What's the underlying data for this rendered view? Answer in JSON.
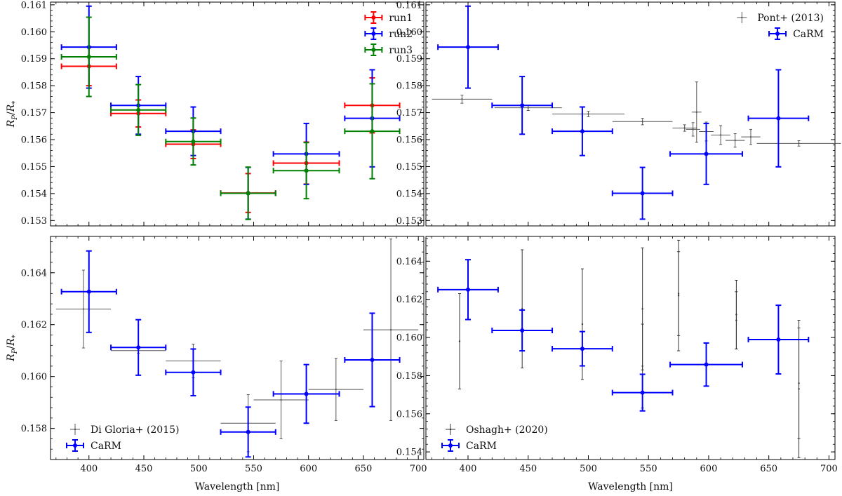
{
  "figure": {
    "xlabel": "Wavelength [nm]",
    "ylabel": "R_P/R_*",
    "ylabel_main": "R",
    "ylabel_sub1": "P",
    "ylabel_slash": "/",
    "ylabel_sub2": "*"
  },
  "chart_data": [
    {
      "type": "scatter",
      "panel": "top-left",
      "title": "",
      "xlabel": "",
      "ylabel": "R_P/R_*",
      "xlim": [
        365,
        705
      ],
      "ylim": [
        152.8,
        161.1
      ],
      "y_scale": 0.001,
      "xticks": [
        400,
        450,
        500,
        550,
        600,
        650,
        700
      ],
      "yticks": [
        153,
        154,
        155,
        156,
        157,
        158,
        159,
        160,
        161
      ],
      "ytick_labels": [
        "0.153",
        "0.154",
        "0.155",
        "0.156",
        "0.157",
        "0.158",
        "0.159",
        "0.160",
        "0.161"
      ],
      "show_xtick_labels": false,
      "legend_position": "top-right",
      "series": [
        {
          "name": "run1",
          "color": "#ff0000",
          "style": "main",
          "points": [
            {
              "x": 400,
              "xerr": 25,
              "y": 158.72,
              "yerr": 0.72
            },
            {
              "x": 445,
              "xerr": 25,
              "y": 156.97,
              "yerr": 0.5
            },
            {
              "x": 495,
              "xerr": 25,
              "y": 155.83,
              "yerr": 0.53
            },
            {
              "x": 545,
              "xerr": 25,
              "y": 154.02,
              "yerr": 0.72
            },
            {
              "x": 598,
              "xerr": 30,
              "y": 155.13,
              "yerr": 0.78
            },
            {
              "x": 658,
              "xerr": 25,
              "y": 157.27,
              "yerr": 1.02
            }
          ]
        },
        {
          "name": "run2",
          "color": "#0000ff",
          "style": "main",
          "points": [
            {
              "x": 400,
              "xerr": 25,
              "y": 159.43,
              "yerr": 1.52
            },
            {
              "x": 445,
              "xerr": 25,
              "y": 157.27,
              "yerr": 1.07
            },
            {
              "x": 495,
              "xerr": 25,
              "y": 156.31,
              "yerr": 0.9
            },
            {
              "x": 545,
              "xerr": 25,
              "y": 154.01,
              "yerr": 0.96
            },
            {
              "x": 598,
              "xerr": 30,
              "y": 155.47,
              "yerr": 1.13
            },
            {
              "x": 658,
              "xerr": 25,
              "y": 156.79,
              "yerr": 1.8
            }
          ]
        },
        {
          "name": "run3",
          "color": "#008000",
          "style": "main",
          "points": [
            {
              "x": 400,
              "xerr": 25,
              "y": 159.07,
              "yerr": 1.47
            },
            {
              "x": 445,
              "xerr": 25,
              "y": 157.1,
              "yerr": 0.94
            },
            {
              "x": 495,
              "xerr": 25,
              "y": 155.93,
              "yerr": 0.87
            },
            {
              "x": 545,
              "xerr": 25,
              "y": 154.01,
              "yerr": 0.97
            },
            {
              "x": 598,
              "xerr": 30,
              "y": 154.85,
              "yerr": 1.04
            },
            {
              "x": 658,
              "xerr": 25,
              "y": 156.31,
              "yerr": 1.76
            }
          ]
        }
      ]
    },
    {
      "type": "scatter",
      "panel": "top-right",
      "title": "",
      "xlabel": "",
      "ylabel": "",
      "xlim": [
        365,
        705
      ],
      "ylim": [
        152.8,
        161.1
      ],
      "y_scale": 0.001,
      "xticks": [
        400,
        450,
        500,
        550,
        600,
        650,
        700
      ],
      "yticks": [
        153,
        154,
        155,
        156,
        157,
        158,
        159,
        160,
        161
      ],
      "ytick_labels": [
        "0.153",
        "0.154",
        "0.155",
        "0.156",
        "0.157",
        "0.158",
        "0.159",
        "0.160",
        "0.161"
      ],
      "show_xtick_labels": false,
      "legend_position": "top-right",
      "series": [
        {
          "name": "Pont+ (2013)",
          "color": "#555555",
          "style": "ref",
          "points": [
            {
              "x": 395,
              "xerr": 25,
              "y": 157.5,
              "yerr": 0.15
            },
            {
              "x": 450,
              "xerr": 28,
              "y": 157.18,
              "yerr": 0.1
            },
            {
              "x": 500,
              "xerr": 30,
              "y": 156.95,
              "yerr": 0.1
            },
            {
              "x": 545,
              "xerr": 25,
              "y": 156.67,
              "yerr": 0.12
            },
            {
              "x": 580,
              "xerr": 10,
              "y": 156.43,
              "yerr": 0.12
            },
            {
              "x": 587,
              "xerr": 6,
              "y": 156.38,
              "yerr": 0.25
            },
            {
              "x": 590,
              "xerr": 4,
              "y": 157.02,
              "yerr": 1.12
            },
            {
              "x": 598,
              "xerr": 6,
              "y": 156.3,
              "yerr": 0.35
            },
            {
              "x": 610,
              "xerr": 8,
              "y": 156.17,
              "yerr": 0.35
            },
            {
              "x": 622,
              "xerr": 8,
              "y": 155.97,
              "yerr": 0.25
            },
            {
              "x": 635,
              "xerr": 8,
              "y": 156.1,
              "yerr": 0.28
            },
            {
              "x": 675,
              "xerr": 35,
              "y": 155.86,
              "yerr": 0.1
            }
          ]
        },
        {
          "name": "CaRM",
          "color": "#0000ff",
          "style": "main",
          "points": [
            {
              "x": 400,
              "xerr": 25,
              "y": 159.43,
              "yerr": 1.52
            },
            {
              "x": 445,
              "xerr": 25,
              "y": 157.27,
              "yerr": 1.07
            },
            {
              "x": 495,
              "xerr": 25,
              "y": 156.31,
              "yerr": 0.9
            },
            {
              "x": 545,
              "xerr": 25,
              "y": 154.01,
              "yerr": 0.96
            },
            {
              "x": 598,
              "xerr": 30,
              "y": 155.47,
              "yerr": 1.13
            },
            {
              "x": 658,
              "xerr": 25,
              "y": 156.79,
              "yerr": 1.8
            }
          ]
        }
      ]
    },
    {
      "type": "scatter",
      "panel": "bottom-left",
      "title": "",
      "xlabel": "Wavelength [nm]",
      "ylabel": "R_P/R_*",
      "xlim": [
        365,
        705
      ],
      "ylim": [
        156.8,
        165.4
      ],
      "y_scale": 0.001,
      "xticks": [
        400,
        450,
        500,
        550,
        600,
        650,
        700
      ],
      "yticks": [
        158,
        160,
        162,
        164
      ],
      "ytick_labels": [
        "0.158",
        "0.160",
        "0.162",
        "0.164"
      ],
      "show_xtick_labels": true,
      "legend_position": "bottom-left",
      "series": [
        {
          "name": "Di Gloria+ (2015)",
          "color": "#555555",
          "style": "ref",
          "points": [
            {
              "x": 395,
              "xerr": 25,
              "y": 162.6,
              "yerr": 1.5
            },
            {
              "x": 445,
              "xerr": 25,
              "y": 161.0,
              "yerr": 0.1
            },
            {
              "x": 495,
              "xerr": 25,
              "y": 160.6,
              "yerr": 0.65
            },
            {
              "x": 545,
              "xerr": 25,
              "y": 158.2,
              "yerr": 1.1
            },
            {
              "x": 575,
              "xerr": 25,
              "y": 159.1,
              "yerr": 1.5
            },
            {
              "x": 625,
              "xerr": 25,
              "y": 159.5,
              "yerr": 1.2
            },
            {
              "x": 675,
              "xerr": 25,
              "y": 161.8,
              "yerr": 3.5
            }
          ]
        },
        {
          "name": "CaRM",
          "color": "#0000ff",
          "style": "main",
          "points": [
            {
              "x": 400,
              "xerr": 25,
              "y": 163.27,
              "yerr": 1.57
            },
            {
              "x": 445,
              "xerr": 25,
              "y": 161.12,
              "yerr": 1.07
            },
            {
              "x": 495,
              "xerr": 25,
              "y": 160.16,
              "yerr": 0.9
            },
            {
              "x": 545,
              "xerr": 25,
              "y": 157.86,
              "yerr": 0.96
            },
            {
              "x": 598,
              "xerr": 30,
              "y": 159.33,
              "yerr": 1.13
            },
            {
              "x": 658,
              "xerr": 25,
              "y": 160.64,
              "yerr": 1.8
            }
          ]
        }
      ]
    },
    {
      "type": "scatter",
      "panel": "bottom-right",
      "title": "",
      "xlabel": "Wavelength [nm]",
      "ylabel": "",
      "xlim": [
        365,
        705
      ],
      "ylim": [
        153.6,
        165.3
      ],
      "y_scale": 0.001,
      "xticks": [
        400,
        450,
        500,
        550,
        600,
        650,
        700
      ],
      "yticks": [
        154,
        156,
        158,
        160,
        162,
        164
      ],
      "ytick_labels": [
        "0.154",
        "0.156",
        "0.158",
        "0.160",
        "0.162",
        "0.164"
      ],
      "show_xtick_labels": true,
      "legend_position": "bottom-left",
      "series": [
        {
          "name": "Oshagh+ (2020)",
          "color": "#333333",
          "style": "ref",
          "points": [
            {
              "x": 393,
              "xerr": 0,
              "y": 159.8,
              "yerr": 2.5
            },
            {
              "x": 445,
              "xerr": 0,
              "y": 161.5,
              "yerr": 3.1
            },
            {
              "x": 495,
              "xerr": 0,
              "y": 160.7,
              "yerr": 2.9
            },
            {
              "x": 545,
              "xerr": 0,
              "y": 161.5,
              "yerr": 3.2
            },
            {
              "x": 545,
              "xerr": 0,
              "y": 158.5,
              "yerr": 2.2
            },
            {
              "x": 575,
              "xerr": 0,
              "y": 162.2,
              "yerr": 2.9
            },
            {
              "x": 575,
              "xerr": 0,
              "y": 162.3,
              "yerr": 2.2
            },
            {
              "x": 623,
              "xerr": 0,
              "y": 161.2,
              "yerr": 1.8
            },
            {
              "x": 623,
              "xerr": 0,
              "y": 160.9,
              "yerr": 1.5
            },
            {
              "x": 675,
              "xerr": 0,
              "y": 157.6,
              "yerr": 2.9
            },
            {
              "x": 675,
              "xerr": 0,
              "y": 157.3,
              "yerr": 3.6
            }
          ]
        },
        {
          "name": "CaRM",
          "color": "#0000ff",
          "style": "main",
          "points": [
            {
              "x": 400,
              "xerr": 25,
              "y": 162.51,
              "yerr": 1.57
            },
            {
              "x": 445,
              "xerr": 25,
              "y": 160.37,
              "yerr": 1.07
            },
            {
              "x": 495,
              "xerr": 25,
              "y": 159.41,
              "yerr": 0.9
            },
            {
              "x": 545,
              "xerr": 25,
              "y": 157.11,
              "yerr": 0.96
            },
            {
              "x": 598,
              "xerr": 30,
              "y": 158.58,
              "yerr": 1.13
            },
            {
              "x": 658,
              "xerr": 25,
              "y": 159.89,
              "yerr": 1.8
            }
          ]
        }
      ]
    }
  ]
}
